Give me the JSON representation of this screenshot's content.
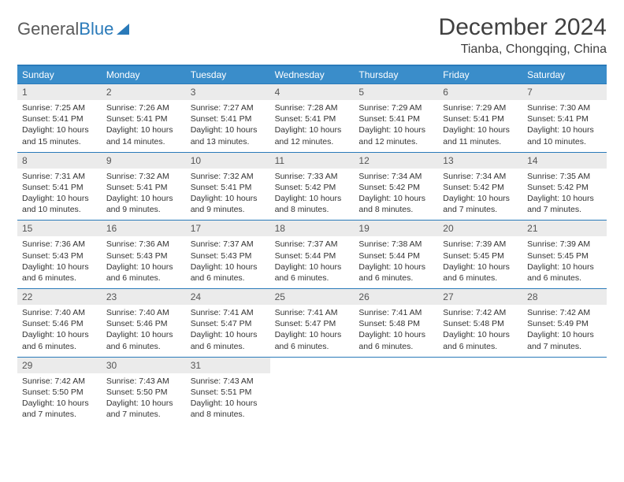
{
  "brand": {
    "part1": "General",
    "part2": "Blue"
  },
  "title": "December 2024",
  "location": "Tianba, Chongqing, China",
  "colors": {
    "header_bg": "#3a8dca",
    "rule": "#2a7ab9",
    "daynum_bg": "#ebebeb",
    "text": "#333333"
  },
  "daysOfWeek": [
    "Sunday",
    "Monday",
    "Tuesday",
    "Wednesday",
    "Thursday",
    "Friday",
    "Saturday"
  ],
  "weeks": [
    [
      {
        "n": "1",
        "sr": "Sunrise: 7:25 AM",
        "ss": "Sunset: 5:41 PM",
        "dl": "Daylight: 10 hours and 15 minutes."
      },
      {
        "n": "2",
        "sr": "Sunrise: 7:26 AM",
        "ss": "Sunset: 5:41 PM",
        "dl": "Daylight: 10 hours and 14 minutes."
      },
      {
        "n": "3",
        "sr": "Sunrise: 7:27 AM",
        "ss": "Sunset: 5:41 PM",
        "dl": "Daylight: 10 hours and 13 minutes."
      },
      {
        "n": "4",
        "sr": "Sunrise: 7:28 AM",
        "ss": "Sunset: 5:41 PM",
        "dl": "Daylight: 10 hours and 12 minutes."
      },
      {
        "n": "5",
        "sr": "Sunrise: 7:29 AM",
        "ss": "Sunset: 5:41 PM",
        "dl": "Daylight: 10 hours and 12 minutes."
      },
      {
        "n": "6",
        "sr": "Sunrise: 7:29 AM",
        "ss": "Sunset: 5:41 PM",
        "dl": "Daylight: 10 hours and 11 minutes."
      },
      {
        "n": "7",
        "sr": "Sunrise: 7:30 AM",
        "ss": "Sunset: 5:41 PM",
        "dl": "Daylight: 10 hours and 10 minutes."
      }
    ],
    [
      {
        "n": "8",
        "sr": "Sunrise: 7:31 AM",
        "ss": "Sunset: 5:41 PM",
        "dl": "Daylight: 10 hours and 10 minutes."
      },
      {
        "n": "9",
        "sr": "Sunrise: 7:32 AM",
        "ss": "Sunset: 5:41 PM",
        "dl": "Daylight: 10 hours and 9 minutes."
      },
      {
        "n": "10",
        "sr": "Sunrise: 7:32 AM",
        "ss": "Sunset: 5:41 PM",
        "dl": "Daylight: 10 hours and 9 minutes."
      },
      {
        "n": "11",
        "sr": "Sunrise: 7:33 AM",
        "ss": "Sunset: 5:42 PM",
        "dl": "Daylight: 10 hours and 8 minutes."
      },
      {
        "n": "12",
        "sr": "Sunrise: 7:34 AM",
        "ss": "Sunset: 5:42 PM",
        "dl": "Daylight: 10 hours and 8 minutes."
      },
      {
        "n": "13",
        "sr": "Sunrise: 7:34 AM",
        "ss": "Sunset: 5:42 PM",
        "dl": "Daylight: 10 hours and 7 minutes."
      },
      {
        "n": "14",
        "sr": "Sunrise: 7:35 AM",
        "ss": "Sunset: 5:42 PM",
        "dl": "Daylight: 10 hours and 7 minutes."
      }
    ],
    [
      {
        "n": "15",
        "sr": "Sunrise: 7:36 AM",
        "ss": "Sunset: 5:43 PM",
        "dl": "Daylight: 10 hours and 6 minutes."
      },
      {
        "n": "16",
        "sr": "Sunrise: 7:36 AM",
        "ss": "Sunset: 5:43 PM",
        "dl": "Daylight: 10 hours and 6 minutes."
      },
      {
        "n": "17",
        "sr": "Sunrise: 7:37 AM",
        "ss": "Sunset: 5:43 PM",
        "dl": "Daylight: 10 hours and 6 minutes."
      },
      {
        "n": "18",
        "sr": "Sunrise: 7:37 AM",
        "ss": "Sunset: 5:44 PM",
        "dl": "Daylight: 10 hours and 6 minutes."
      },
      {
        "n": "19",
        "sr": "Sunrise: 7:38 AM",
        "ss": "Sunset: 5:44 PM",
        "dl": "Daylight: 10 hours and 6 minutes."
      },
      {
        "n": "20",
        "sr": "Sunrise: 7:39 AM",
        "ss": "Sunset: 5:45 PM",
        "dl": "Daylight: 10 hours and 6 minutes."
      },
      {
        "n": "21",
        "sr": "Sunrise: 7:39 AM",
        "ss": "Sunset: 5:45 PM",
        "dl": "Daylight: 10 hours and 6 minutes."
      }
    ],
    [
      {
        "n": "22",
        "sr": "Sunrise: 7:40 AM",
        "ss": "Sunset: 5:46 PM",
        "dl": "Daylight: 10 hours and 6 minutes."
      },
      {
        "n": "23",
        "sr": "Sunrise: 7:40 AM",
        "ss": "Sunset: 5:46 PM",
        "dl": "Daylight: 10 hours and 6 minutes."
      },
      {
        "n": "24",
        "sr": "Sunrise: 7:41 AM",
        "ss": "Sunset: 5:47 PM",
        "dl": "Daylight: 10 hours and 6 minutes."
      },
      {
        "n": "25",
        "sr": "Sunrise: 7:41 AM",
        "ss": "Sunset: 5:47 PM",
        "dl": "Daylight: 10 hours and 6 minutes."
      },
      {
        "n": "26",
        "sr": "Sunrise: 7:41 AM",
        "ss": "Sunset: 5:48 PM",
        "dl": "Daylight: 10 hours and 6 minutes."
      },
      {
        "n": "27",
        "sr": "Sunrise: 7:42 AM",
        "ss": "Sunset: 5:48 PM",
        "dl": "Daylight: 10 hours and 6 minutes."
      },
      {
        "n": "28",
        "sr": "Sunrise: 7:42 AM",
        "ss": "Sunset: 5:49 PM",
        "dl": "Daylight: 10 hours and 7 minutes."
      }
    ],
    [
      {
        "n": "29",
        "sr": "Sunrise: 7:42 AM",
        "ss": "Sunset: 5:50 PM",
        "dl": "Daylight: 10 hours and 7 minutes."
      },
      {
        "n": "30",
        "sr": "Sunrise: 7:43 AM",
        "ss": "Sunset: 5:50 PM",
        "dl": "Daylight: 10 hours and 7 minutes."
      },
      {
        "n": "31",
        "sr": "Sunrise: 7:43 AM",
        "ss": "Sunset: 5:51 PM",
        "dl": "Daylight: 10 hours and 8 minutes."
      },
      {
        "n": "",
        "sr": "",
        "ss": "",
        "dl": ""
      },
      {
        "n": "",
        "sr": "",
        "ss": "",
        "dl": ""
      },
      {
        "n": "",
        "sr": "",
        "ss": "",
        "dl": ""
      },
      {
        "n": "",
        "sr": "",
        "ss": "",
        "dl": ""
      }
    ]
  ]
}
